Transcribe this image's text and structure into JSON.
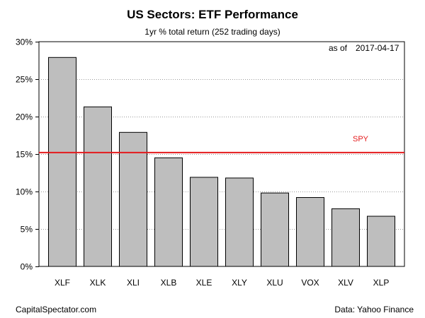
{
  "chart_data": {
    "type": "bar",
    "title": "US Sectors: ETF Performance",
    "subtitle": "1yr % total return (252 trading days)",
    "as_of_label": "as of",
    "as_of_date": "2017-04-17",
    "categories": [
      "XLF",
      "XLK",
      "XLI",
      "XLB",
      "XLE",
      "XLY",
      "XLU",
      "VOX",
      "XLV",
      "XLP"
    ],
    "values": [
      27.9,
      21.3,
      17.9,
      14.5,
      11.9,
      11.8,
      9.8,
      9.2,
      7.7,
      6.7
    ],
    "ylim": [
      0,
      30
    ],
    "y_ticks": [
      0,
      5,
      10,
      15,
      20,
      25,
      30
    ],
    "y_tick_labels": [
      "0%",
      "5%",
      "10%",
      "15%",
      "20%",
      "25%",
      "30%"
    ],
    "grid": "horizontal dotted",
    "bar_color": "#bebebe",
    "reference_line": {
      "label": "SPY",
      "value": 15.2,
      "color": "#e41a1c"
    }
  },
  "footer": {
    "left": "CapitalSpectator.com",
    "right": "Data: Yahoo Finance"
  }
}
